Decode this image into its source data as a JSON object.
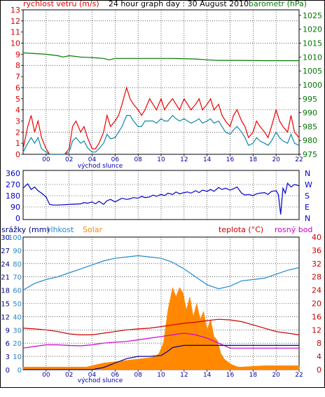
{
  "colors": {
    "wind_axis": "#dd0000",
    "baro": "#007700",
    "wind_max": "#ee0000",
    "wind_avg": "#1188aa",
    "direction": "#0000cc",
    "rain": "#000088",
    "humidity": "#2288cc",
    "solar": "#ff8800",
    "temp": "#cc0000",
    "dew": "#cc00cc",
    "time_text": "#0000aa"
  },
  "chart_data": [
    {
      "type": "line",
      "title": "24 hour graph day : 30 August 2010",
      "left_label": "rychlost vetru (m/s)",
      "right_label": "barometr (hPa)",
      "sunrise_label": "východ slunce",
      "x_ticks": [
        "00",
        "02",
        "04",
        "06",
        "08",
        "10",
        "12",
        "14",
        "16",
        "18",
        "20",
        "22"
      ],
      "x_end_tick": "",
      "y_left_ticks": [
        "0",
        "1",
        "2",
        "3",
        "4",
        "5",
        "6",
        "7",
        "8",
        "9",
        "10",
        "11",
        "12",
        "13"
      ],
      "y_left_major": [
        "0",
        "2",
        "4",
        "6",
        "8",
        "10",
        "12"
      ],
      "ylim_left": [
        0,
        13
      ],
      "y_right_ticks": [
        "975",
        "980",
        "985",
        "990",
        "995",
        "1000",
        "1005",
        "1010",
        "1015",
        "1020",
        "1025"
      ],
      "ylim_right": [
        975,
        1027
      ],
      "series": [
        {
          "key": "wind_max",
          "axis": "left",
          "x": [
            -1,
            -0.6,
            -0.3,
            0,
            0.3,
            0.6,
            1,
            1.3,
            1.6,
            2,
            2.3,
            2.6,
            3,
            3.3,
            3.6,
            4,
            4.3,
            4.6,
            5,
            5.3,
            5.6,
            6,
            6.3,
            6.6,
            7,
            7.3,
            7.6,
            8,
            8.3,
            8.6,
            9,
            9.3,
            9.6,
            10,
            10.3,
            10.6,
            11,
            11.3,
            11.6,
            12,
            12.3,
            12.6,
            13,
            13.3,
            13.6,
            14,
            14.3,
            14.6,
            15,
            15.3,
            15.6,
            16,
            16.3,
            16.6,
            17,
            17.3,
            17.6,
            18,
            18.3,
            18.6,
            19,
            19.3,
            19.6,
            20,
            20.3,
            20.6,
            21,
            21.3,
            21.6,
            22,
            22.3,
            22.6,
            23
          ],
          "values": [
            0.5,
            2.5,
            3.5,
            2,
            3,
            1.5,
            0.5,
            0,
            0,
            0,
            0,
            0,
            0.5,
            2.5,
            3,
            2,
            2.5,
            1.5,
            0.5,
            0.5,
            1,
            2,
            3.5,
            2.5,
            3,
            3.5,
            4.5,
            6,
            5,
            4.5,
            4,
            3.5,
            4,
            5,
            4.5,
            4,
            5,
            4,
            4.5,
            5,
            4.5,
            4,
            5,
            4.5,
            4,
            4.5,
            5,
            4,
            4.5,
            5,
            4,
            4.5,
            3.5,
            3,
            2.5,
            3.5,
            4,
            3,
            2.5,
            1.5,
            2,
            3,
            2.5,
            2,
            1.5,
            2.5,
            4,
            3,
            2.5,
            2,
            3.5,
            2,
            1.5
          ]
        },
        {
          "key": "wind_avg",
          "axis": "left",
          "x": [
            -1,
            -0.6,
            -0.3,
            0,
            0.3,
            0.6,
            1,
            1.3,
            1.6,
            2,
            2.3,
            2.6,
            3,
            3.3,
            3.6,
            4,
            4.3,
            4.6,
            5,
            5.3,
            5.6,
            6,
            6.3,
            6.6,
            7,
            7.3,
            7.6,
            8,
            8.3,
            8.6,
            9,
            9.3,
            9.6,
            10,
            10.3,
            10.6,
            11,
            11.3,
            11.6,
            12,
            12.3,
            12.6,
            13,
            13.3,
            13.6,
            14,
            14.3,
            14.6,
            15,
            15.3,
            15.6,
            16,
            16.3,
            16.6,
            17,
            17.3,
            17.6,
            18,
            18.3,
            18.6,
            19,
            19.3,
            19.6,
            20,
            20.3,
            20.6,
            21,
            21.3,
            21.6,
            22,
            22.3,
            22.6,
            23
          ],
          "values": [
            0.2,
            1,
            1.5,
            1,
            1.5,
            0.5,
            0.2,
            0,
            0,
            0,
            0,
            0,
            0.2,
            1.2,
            1.5,
            1,
            1.2,
            0.6,
            0.2,
            0.2,
            0.5,
            1,
            1.8,
            1.4,
            1.5,
            2,
            2.5,
            3.5,
            3.5,
            3,
            2.5,
            2.5,
            3,
            3,
            3,
            2.8,
            3.2,
            3,
            3,
            3.5,
            3.2,
            3,
            3.2,
            3,
            2.8,
            3,
            3.2,
            2.8,
            3,
            3.2,
            2.8,
            3,
            2.5,
            2,
            1.8,
            2.2,
            2.5,
            2,
            1.5,
            0.8,
            1,
            1.5,
            1.2,
            1,
            0.8,
            1.2,
            2,
            1.5,
            1.2,
            1,
            1.8,
            1,
            0.8
          ]
        },
        {
          "key": "baro",
          "axis": "right",
          "x": [
            -1,
            1,
            2,
            2.5,
            3,
            4,
            5,
            6,
            6.5,
            7,
            8,
            10,
            12,
            14,
            15,
            16,
            17,
            18,
            20,
            22,
            23
          ],
          "values": [
            1011.5,
            1011,
            1010.5,
            1010,
            1010.5,
            1010,
            1009.8,
            1009.5,
            1009,
            1009.5,
            1009.5,
            1009.5,
            1009.5,
            1009.3,
            1009,
            1008.8,
            1008.8,
            1008.8,
            1008.7,
            1008.7,
            1008.7
          ]
        }
      ]
    },
    {
      "type": "scatter",
      "y_left_ticks": [
        "360",
        "270",
        "180",
        "90",
        "0"
      ],
      "y_right_ticks": [
        "N",
        "W",
        "S",
        "E",
        "N"
      ],
      "ylim": [
        0,
        360
      ],
      "series": [
        {
          "key": "direction",
          "x": [
            -1,
            -0.6,
            -0.3,
            0,
            0.3,
            0.6,
            1,
            1.3,
            1.6,
            2,
            3,
            4,
            4.3,
            4.6,
            5,
            5.3,
            5.6,
            6,
            6.3,
            6.6,
            7,
            7.3,
            7.6,
            8,
            8.3,
            8.6,
            9,
            9.3,
            9.6,
            10,
            10.3,
            10.6,
            11,
            11.3,
            11.6,
            12,
            12.3,
            12.6,
            13,
            13.3,
            13.6,
            14,
            14.3,
            14.6,
            15,
            15.3,
            15.6,
            16,
            16.3,
            16.6,
            17,
            17.3,
            17.6,
            18,
            18.3,
            18.6,
            19,
            19.3,
            19.6,
            20,
            20.3,
            20.6,
            21,
            21.2,
            21.4,
            21.6,
            21.8,
            22,
            22.3,
            22.6,
            23
          ],
          "values": [
            240,
            275,
            230,
            250,
            220,
            200,
            170,
            110,
            105,
            105,
            110,
            115,
            125,
            120,
            130,
            115,
            135,
            110,
            140,
            150,
            130,
            145,
            160,
            150,
            155,
            165,
            160,
            175,
            165,
            170,
            185,
            175,
            190,
            180,
            200,
            190,
            210,
            195,
            205,
            210,
            200,
            220,
            205,
            225,
            215,
            230,
            215,
            245,
            230,
            240,
            225,
            235,
            250,
            200,
            185,
            190,
            180,
            195,
            200,
            205,
            190,
            215,
            220,
            190,
            30,
            240,
            200,
            280,
            250,
            270,
            260
          ]
        }
      ]
    },
    {
      "type": "line",
      "left_labels": {
        "rain": "srážky (mm)",
        "humidity": "vlhkost",
        "solar": "Solar"
      },
      "right_labels": {
        "temp": "teplota (°C)",
        "dew": "rosný bod"
      },
      "sunrise_label": "východ slunce",
      "x_ticks": [
        "00",
        "02",
        "04",
        "06",
        "08",
        "10",
        "12",
        "14",
        "16",
        "18",
        "20",
        "22"
      ],
      "x_end_tick": "",
      "y_rain_ticks": [
        "30",
        "27",
        "24",
        "21",
        "18",
        "15",
        "12",
        "9",
        "6",
        "3",
        "0"
      ],
      "ylim_rain": [
        0,
        30
      ],
      "y_humidity_ticks": [
        "100",
        "90",
        "80",
        "70",
        "60",
        "50",
        "40",
        "30",
        "20",
        "10",
        "0"
      ],
      "ylim_humidity": [
        0,
        100
      ],
      "y_temp_ticks": [
        "40",
        "36",
        "32",
        "28",
        "24",
        "20",
        "16",
        "12",
        "8",
        "4",
        "0"
      ],
      "ylim_temp": [
        0,
        40
      ],
      "series": [
        {
          "key": "rain",
          "axis": "rain",
          "x": [
            -1,
            5,
            6,
            6.5,
            7,
            8,
            9,
            10,
            11,
            11.5,
            12,
            13,
            14,
            15,
            16,
            17,
            18,
            20,
            22,
            23
          ],
          "values": [
            0,
            0,
            0.5,
            1,
            1.5,
            2.5,
            3,
            3,
            3.2,
            4,
            5,
            5.5,
            5.5,
            5.5,
            5.5,
            5.5,
            5.5,
            5.5,
            5.5,
            5.5
          ]
        },
        {
          "key": "humidity",
          "axis": "humidity",
          "x": [
            -1,
            0,
            1,
            2,
            3,
            4,
            5,
            6,
            7,
            8,
            9,
            10,
            11,
            12,
            13,
            14,
            15,
            16,
            17,
            18,
            19,
            20,
            21,
            22,
            23
          ],
          "values": [
            60,
            65,
            68,
            70,
            73,
            76,
            79,
            82,
            84,
            85,
            86,
            85,
            84,
            81,
            76,
            70,
            64,
            61,
            63,
            67,
            68,
            69,
            72,
            75,
            77
          ]
        },
        {
          "key": "temp",
          "axis": "temp",
          "x": [
            -1,
            0,
            1,
            2,
            3,
            4,
            5,
            6,
            7,
            8,
            9,
            10,
            11,
            12,
            13,
            14,
            15,
            16,
            17,
            18,
            19,
            20,
            21,
            22,
            23
          ],
          "values": [
            12.5,
            12.3,
            12,
            11.5,
            10.8,
            10.5,
            10.5,
            11,
            11.5,
            12,
            12.3,
            12.5,
            13,
            13.5,
            14,
            14.3,
            14.8,
            15.2,
            15,
            14.5,
            13.5,
            12.5,
            11.5,
            11,
            10.5
          ]
        },
        {
          "key": "dew",
          "axis": "temp",
          "x": [
            -1,
            0,
            1,
            2,
            3,
            4,
            5,
            6,
            7,
            8,
            9,
            10,
            11,
            12,
            13,
            14,
            15,
            16,
            17,
            18,
            19,
            20,
            21,
            22,
            23
          ],
          "values": [
            6.5,
            7,
            7.5,
            7.5,
            7.3,
            7.2,
            7.5,
            8,
            8.3,
            8.5,
            9,
            9.5,
            10,
            10.5,
            11,
            10.5,
            9.5,
            8,
            6.5,
            6.5,
            6.5,
            6.5,
            6.5,
            6.5,
            6.5
          ]
        },
        {
          "key": "solar",
          "axis": "humidity",
          "x": [
            -1,
            4.5,
            5,
            6,
            7,
            8,
            9,
            10,
            10.5,
            10.8,
            11.2,
            11.6,
            12,
            12.3,
            12.6,
            12.9,
            13.2,
            13.5,
            13.8,
            14.1,
            14.4,
            14.7,
            15,
            15.3,
            15.6,
            15.9,
            16.2,
            16.5,
            16.8,
            17.1,
            17.4,
            17.7,
            18,
            20,
            22,
            23
          ],
          "values": [
            2,
            2,
            3,
            5,
            6,
            7,
            8,
            9,
            10,
            12,
            20,
            45,
            62,
            55,
            62,
            58,
            45,
            55,
            40,
            50,
            38,
            44,
            30,
            38,
            25,
            22,
            12,
            8,
            6,
            4,
            3,
            2,
            2,
            3,
            3,
            3
          ]
        }
      ]
    }
  ]
}
